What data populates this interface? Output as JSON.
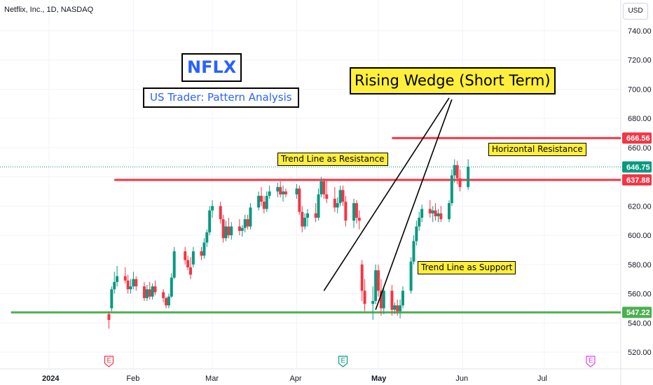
{
  "header": {
    "symbol_line": "Netflix, Inc., 1D, NASDAQ",
    "currency": "USD"
  },
  "annotations": {
    "ticker_box": "NFLX",
    "subtitle_box": "US Trader: Pattern Analysis",
    "pattern_box": "Rising Wedge (Short Term)",
    "trend_resistance": "Trend Line as Resistance",
    "horizontal_resistance": "Horizontal  Resistance",
    "trend_support": "Trend Line as Support"
  },
  "colors": {
    "up": "#089981",
    "down": "#f23645",
    "resistance": "#f23645",
    "support": "#4caf50",
    "highlight": "#ffef3a",
    "price_last": "#089981",
    "earnings_red": "#f23645",
    "earnings_green": "#089981",
    "earnings_purple": "#e040fb"
  },
  "chart_data": {
    "type": "candlestick",
    "y_axis": {
      "ticks": [
        520,
        540,
        560,
        580,
        600,
        620,
        640,
        660,
        680,
        700,
        720,
        740
      ],
      "tick_labels": [
        "520.00",
        "540.00",
        "560.00",
        "580.00",
        "600.00",
        "620.00",
        "640.00",
        "660.00",
        "680.00",
        "700.00",
        "720.00",
        "740.00"
      ],
      "range": [
        510,
        752
      ]
    },
    "x_axis": {
      "tick_labels": [
        {
          "label": "2024",
          "date": "2024-01-01",
          "bold": true
        },
        {
          "label": "Feb",
          "date": "2024-02-01"
        },
        {
          "label": "Mar",
          "date": "2024-03-01"
        },
        {
          "label": "Apr",
          "date": "2024-04-01"
        },
        {
          "label": "May",
          "date": "2024-05-01",
          "bold": true
        },
        {
          "label": "Jun",
          "date": "2024-06-01"
        },
        {
          "label": "Jul",
          "date": "2024-07-01"
        }
      ]
    },
    "price_labels": [
      {
        "value": 666.56,
        "text": "666.56",
        "color": "#f23645"
      },
      {
        "value": 646.75,
        "text": "646.75",
        "color": "#089981"
      },
      {
        "value": 637.88,
        "text": "637.88",
        "color": "#f23645"
      },
      {
        "value": 547.22,
        "text": "547.22",
        "color": "#4caf50"
      }
    ],
    "horizontal_lines": [
      {
        "value": 666.56,
        "from": "2024-05-06",
        "color": "#f23645",
        "role": "horizontal resistance"
      },
      {
        "value": 637.88,
        "from": "2024-01-25",
        "color": "#f23645",
        "role": "trend line as resistance"
      },
      {
        "value": 547.22,
        "from": "2023-12-18",
        "color": "#4caf50",
        "role": "support"
      }
    ],
    "last_price_line": {
      "value": 646.75
    },
    "trend_lines": [
      {
        "from": {
          "date": "2024-04-11",
          "value": 562
        },
        "to": {
          "date": "2024-05-27",
          "value": 694
        }
      },
      {
        "from": {
          "date": "2024-04-30",
          "value": 549
        },
        "to": {
          "date": "2024-05-28",
          "value": 693
        }
      }
    ],
    "earnings_markers": [
      {
        "date": "2024-01-23",
        "label": "E",
        "color": "#f23645"
      },
      {
        "date": "2024-04-18",
        "label": "E",
        "color": "#089981"
      },
      {
        "date": "2024-07-18",
        "label": "E",
        "color": "#e040fb"
      }
    ],
    "candles": [
      {
        "date": "2024-01-23",
        "o": 546,
        "h": 548,
        "l": 536,
        "c": 542
      },
      {
        "date": "2024-01-24",
        "o": 550,
        "h": 565,
        "l": 548,
        "c": 563
      },
      {
        "date": "2024-01-25",
        "o": 563,
        "h": 575,
        "l": 560,
        "c": 568
      },
      {
        "date": "2024-01-26",
        "o": 568,
        "h": 579,
        "l": 565,
        "c": 572
      },
      {
        "date": "2024-01-29",
        "o": 572,
        "h": 578,
        "l": 567,
        "c": 569
      },
      {
        "date": "2024-01-30",
        "o": 569,
        "h": 573,
        "l": 560,
        "c": 563
      },
      {
        "date": "2024-01-31",
        "o": 563,
        "h": 570,
        "l": 560,
        "c": 565
      },
      {
        "date": "2024-02-01",
        "o": 565,
        "h": 575,
        "l": 563,
        "c": 570
      },
      {
        "date": "2024-02-02",
        "o": 570,
        "h": 572,
        "l": 562,
        "c": 565
      },
      {
        "date": "2024-02-05",
        "o": 565,
        "h": 568,
        "l": 555,
        "c": 557
      },
      {
        "date": "2024-02-06",
        "o": 557,
        "h": 566,
        "l": 555,
        "c": 563
      },
      {
        "date": "2024-02-07",
        "o": 563,
        "h": 568,
        "l": 556,
        "c": 558
      },
      {
        "date": "2024-02-08",
        "o": 558,
        "h": 567,
        "l": 556,
        "c": 565
      },
      {
        "date": "2024-02-09",
        "o": 565,
        "h": 569,
        "l": 559,
        "c": 561
      },
      {
        "date": "2024-02-12",
        "o": 561,
        "h": 563,
        "l": 554,
        "c": 557
      },
      {
        "date": "2024-02-13",
        "o": 557,
        "h": 558,
        "l": 550,
        "c": 552
      },
      {
        "date": "2024-02-14",
        "o": 552,
        "h": 560,
        "l": 550,
        "c": 558
      },
      {
        "date": "2024-02-15",
        "o": 558,
        "h": 574,
        "l": 557,
        "c": 571
      },
      {
        "date": "2024-02-16",
        "o": 571,
        "h": 592,
        "l": 570,
        "c": 589
      },
      {
        "date": "2024-02-20",
        "o": 589,
        "h": 592,
        "l": 580,
        "c": 583
      },
      {
        "date": "2024-02-21",
        "o": 583,
        "h": 586,
        "l": 576,
        "c": 578
      },
      {
        "date": "2024-02-22",
        "o": 578,
        "h": 585,
        "l": 570,
        "c": 573
      },
      {
        "date": "2024-02-23",
        "o": 580,
        "h": 592,
        "l": 578,
        "c": 589
      },
      {
        "date": "2024-02-26",
        "o": 589,
        "h": 592,
        "l": 583,
        "c": 586
      },
      {
        "date": "2024-02-27",
        "o": 586,
        "h": 598,
        "l": 584,
        "c": 595
      },
      {
        "date": "2024-02-28",
        "o": 595,
        "h": 604,
        "l": 592,
        "c": 602
      },
      {
        "date": "2024-02-29",
        "o": 602,
        "h": 620,
        "l": 600,
        "c": 617
      },
      {
        "date": "2024-03-01",
        "o": 617,
        "h": 624,
        "l": 612,
        "c": 620
      },
      {
        "date": "2024-03-04",
        "o": 620,
        "h": 623,
        "l": 608,
        "c": 611
      },
      {
        "date": "2024-03-05",
        "o": 611,
        "h": 614,
        "l": 595,
        "c": 598
      },
      {
        "date": "2024-03-06",
        "o": 598,
        "h": 610,
        "l": 596,
        "c": 606
      },
      {
        "date": "2024-03-07",
        "o": 606,
        "h": 612,
        "l": 598,
        "c": 600
      },
      {
        "date": "2024-03-08",
        "o": 600,
        "h": 609,
        "l": 597,
        "c": 606
      },
      {
        "date": "2024-03-11",
        "o": 606,
        "h": 611,
        "l": 600,
        "c": 603
      },
      {
        "date": "2024-03-12",
        "o": 603,
        "h": 607,
        "l": 599,
        "c": 605
      },
      {
        "date": "2024-03-13",
        "o": 605,
        "h": 614,
        "l": 602,
        "c": 611
      },
      {
        "date": "2024-03-14",
        "o": 611,
        "h": 614,
        "l": 604,
        "c": 606
      },
      {
        "date": "2024-03-15",
        "o": 606,
        "h": 622,
        "l": 604,
        "c": 619
      },
      {
        "date": "2024-03-18",
        "o": 619,
        "h": 630,
        "l": 617,
        "c": 627
      },
      {
        "date": "2024-03-19",
        "o": 627,
        "h": 633,
        "l": 620,
        "c": 623
      },
      {
        "date": "2024-03-20",
        "o": 623,
        "h": 627,
        "l": 615,
        "c": 618
      },
      {
        "date": "2024-03-21",
        "o": 618,
        "h": 630,
        "l": 616,
        "c": 627
      },
      {
        "date": "2024-03-22",
        "o": 627,
        "h": 634,
        "l": 625,
        "c": 630
      },
      {
        "date": "2024-03-25",
        "o": 630,
        "h": 636,
        "l": 626,
        "c": 633
      },
      {
        "date": "2024-03-26",
        "o": 633,
        "h": 637,
        "l": 626,
        "c": 628
      },
      {
        "date": "2024-03-27",
        "o": 628,
        "h": 634,
        "l": 623,
        "c": 630
      },
      {
        "date": "2024-03-28",
        "o": 630,
        "h": 632,
        "l": 626,
        "c": 628
      },
      {
        "date": "2024-04-01",
        "o": 628,
        "h": 635,
        "l": 625,
        "c": 632
      },
      {
        "date": "2024-04-02",
        "o": 632,
        "h": 634,
        "l": 614,
        "c": 616
      },
      {
        "date": "2024-04-03",
        "o": 616,
        "h": 620,
        "l": 602,
        "c": 606
      },
      {
        "date": "2024-04-04",
        "o": 606,
        "h": 615,
        "l": 604,
        "c": 612
      },
      {
        "date": "2024-04-05",
        "o": 612,
        "h": 618,
        "l": 606,
        "c": 615
      },
      {
        "date": "2024-04-08",
        "o": 615,
        "h": 622,
        "l": 609,
        "c": 612
      },
      {
        "date": "2024-04-09",
        "o": 612,
        "h": 632,
        "l": 610,
        "c": 628
      },
      {
        "date": "2024-04-10",
        "o": 628,
        "h": 640,
        "l": 626,
        "c": 637
      },
      {
        "date": "2024-04-11",
        "o": 637,
        "h": 639,
        "l": 625,
        "c": 628
      },
      {
        "date": "2024-04-12",
        "o": 628,
        "h": 638,
        "l": 622,
        "c": 625
      },
      {
        "date": "2024-04-15",
        "o": 625,
        "h": 633,
        "l": 616,
        "c": 619
      },
      {
        "date": "2024-04-16",
        "o": 619,
        "h": 626,
        "l": 615,
        "c": 622
      },
      {
        "date": "2024-04-17",
        "o": 622,
        "h": 634,
        "l": 620,
        "c": 631
      },
      {
        "date": "2024-04-18",
        "o": 631,
        "h": 634,
        "l": 620,
        "c": 623
      },
      {
        "date": "2024-04-19",
        "o": 623,
        "h": 627,
        "l": 606,
        "c": 610
      },
      {
        "date": "2024-04-22",
        "o": 610,
        "h": 625,
        "l": 605,
        "c": 622
      },
      {
        "date": "2024-04-23",
        "o": 622,
        "h": 624,
        "l": 608,
        "c": 612
      },
      {
        "date": "2024-04-24",
        "o": 612,
        "h": 617,
        "l": 604,
        "c": 610
      },
      {
        "date": "2024-04-25",
        "o": 580,
        "h": 583,
        "l": 555,
        "c": 562
      },
      {
        "date": "2024-04-26",
        "o": 562,
        "h": 570,
        "l": 548,
        "c": 553
      },
      {
        "date": "2024-04-29",
        "o": 553,
        "h": 565,
        "l": 542,
        "c": 555
      },
      {
        "date": "2024-04-30",
        "o": 555,
        "h": 580,
        "l": 553,
        "c": 576
      },
      {
        "date": "2024-05-01",
        "o": 576,
        "h": 580,
        "l": 558,
        "c": 562
      },
      {
        "date": "2024-05-02",
        "o": 562,
        "h": 570,
        "l": 545,
        "c": 550
      },
      {
        "date": "2024-05-03",
        "o": 550,
        "h": 565,
        "l": 546,
        "c": 562
      },
      {
        "date": "2024-05-06",
        "o": 562,
        "h": 566,
        "l": 545,
        "c": 549
      },
      {
        "date": "2024-05-07",
        "o": 549,
        "h": 554,
        "l": 546,
        "c": 552
      },
      {
        "date": "2024-05-08",
        "o": 552,
        "h": 556,
        "l": 545,
        "c": 548
      },
      {
        "date": "2024-05-09",
        "o": 548,
        "h": 556,
        "l": 543,
        "c": 552
      },
      {
        "date": "2024-05-10",
        "o": 552,
        "h": 565,
        "l": 550,
        "c": 562
      },
      {
        "date": "2024-05-13",
        "o": 562,
        "h": 585,
        "l": 560,
        "c": 582
      },
      {
        "date": "2024-05-14",
        "o": 582,
        "h": 600,
        "l": 580,
        "c": 596
      },
      {
        "date": "2024-05-15",
        "o": 596,
        "h": 610,
        "l": 593,
        "c": 606
      },
      {
        "date": "2024-05-16",
        "o": 606,
        "h": 616,
        "l": 603,
        "c": 612
      },
      {
        "date": "2024-05-17",
        "o": 612,
        "h": 621,
        "l": 609,
        "c": 618
      },
      {
        "date": "2024-05-20",
        "o": 618,
        "h": 624,
        "l": 612,
        "c": 615
      },
      {
        "date": "2024-05-21",
        "o": 615,
        "h": 620,
        "l": 609,
        "c": 617
      },
      {
        "date": "2024-05-22",
        "o": 617,
        "h": 622,
        "l": 610,
        "c": 613
      },
      {
        "date": "2024-05-23",
        "o": 613,
        "h": 618,
        "l": 609,
        "c": 615
      },
      {
        "date": "2024-05-24",
        "o": 615,
        "h": 620,
        "l": 609,
        "c": 611
      },
      {
        "date": "2024-05-27",
        "o": 611,
        "h": 624,
        "l": 609,
        "c": 622
      },
      {
        "date": "2024-05-28",
        "o": 622,
        "h": 645,
        "l": 620,
        "c": 641
      },
      {
        "date": "2024-05-29",
        "o": 641,
        "h": 652,
        "l": 636,
        "c": 648
      },
      {
        "date": "2024-05-30",
        "o": 648,
        "h": 651,
        "l": 635,
        "c": 639
      },
      {
        "date": "2024-05-31",
        "o": 639,
        "h": 645,
        "l": 630,
        "c": 633
      },
      {
        "date": "2024-06-03",
        "o": 633,
        "h": 652,
        "l": 631,
        "c": 647
      }
    ]
  }
}
